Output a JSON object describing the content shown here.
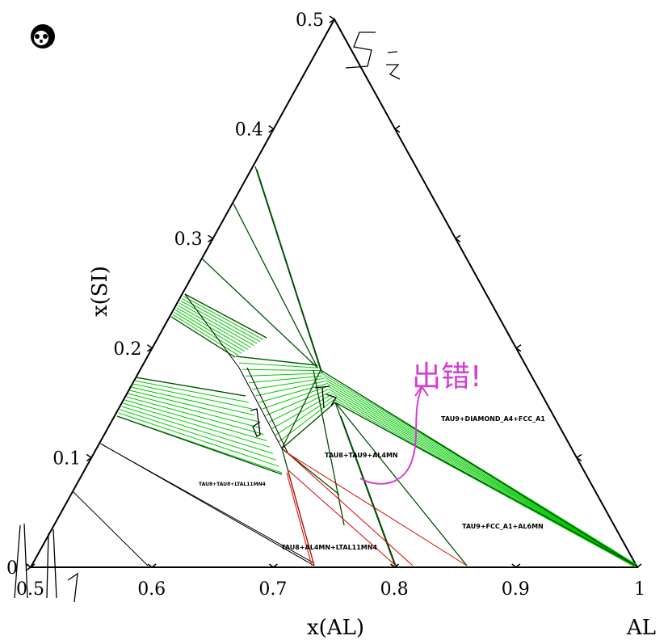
{
  "chart_data": {
    "type": "ternary-phase-diagram",
    "bottom_axis": {
      "label": "x(AL)",
      "ticks": [
        {
          "value": 0.5,
          "label": "0.5"
        },
        {
          "value": 0.6,
          "label": "0.6"
        },
        {
          "value": 0.7,
          "label": "0.7"
        },
        {
          "value": 0.8,
          "label": "0.8"
        },
        {
          "value": 0.9,
          "label": "0.9"
        },
        {
          "value": 1.0,
          "label": "1"
        }
      ]
    },
    "left_axis": {
      "label": "x(SI)",
      "ticks": [
        {
          "value": 0.0,
          "label": "0"
        },
        {
          "value": 0.1,
          "label": "0.1"
        },
        {
          "value": 0.2,
          "label": "0.2"
        },
        {
          "value": 0.3,
          "label": "0.3"
        },
        {
          "value": 0.4,
          "label": "0.4"
        },
        {
          "value": 0.5,
          "label": "0.5"
        }
      ]
    },
    "corner_label": "AL",
    "region_labels": [
      "TAU9+DIAMOND_A4+FCC_A1",
      "TAU8+TAU9+AL4MN",
      "TAU8+TAU8+LTAL11MN4",
      "TAU9+FCC_A1+AL6MN",
      "TAU8+AL4MN+LTAL11MN4"
    ],
    "colors": {
      "frame": "#000000",
      "tie_line": "#00c800",
      "boundary": "#006400",
      "red_line": "#e00000",
      "annotation": "#d43cd4"
    }
  },
  "annotations": {
    "error_note": "出错!",
    "hand_marks": [
      "Si",
      "T5",
      "T4",
      "Mn"
    ]
  }
}
